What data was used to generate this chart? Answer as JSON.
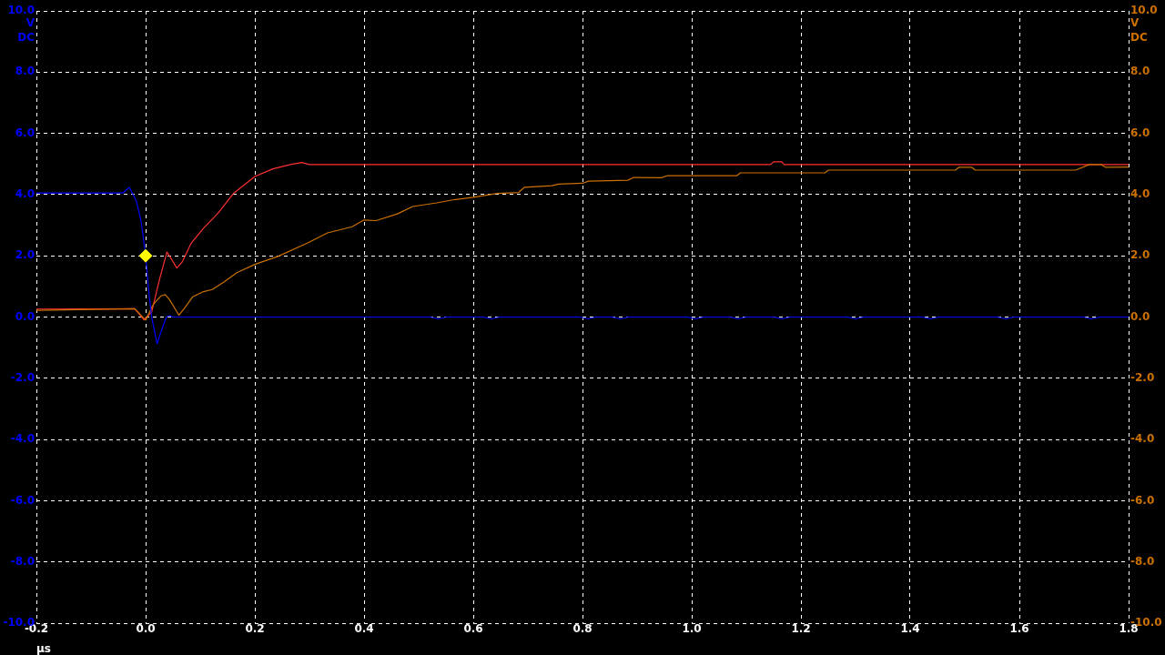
{
  "chart_data": {
    "type": "line",
    "xlabel": "µs",
    "ylabel": "V DC",
    "y2label": "V DC",
    "grid": true,
    "marker": "none",
    "line_style": "solid",
    "xlim": [
      -0.2,
      1.8
    ],
    "xticks": [
      {
        "value": -0.2,
        "label": "-0.2"
      },
      {
        "value": 0,
        "label": "0.0"
      },
      {
        "value": 0.2,
        "label": "0.2"
      },
      {
        "value": 0.4,
        "label": "0.4"
      },
      {
        "value": 0.6,
        "label": "0.6"
      },
      {
        "value": 0.8,
        "label": "0.8"
      },
      {
        "value": 1,
        "label": "1.0"
      },
      {
        "value": 1.2,
        "label": "1.2"
      },
      {
        "value": 1.4,
        "label": "1.4"
      },
      {
        "value": 1.6,
        "label": "1.6"
      },
      {
        "value": 1.8,
        "label": "1.8"
      }
    ],
    "ylim": [
      -10,
      10
    ],
    "yticks": [
      {
        "value": -10,
        "label": "-10.0"
      },
      {
        "value": -8,
        "label": "-8.0"
      },
      {
        "value": -6,
        "label": "-6.0"
      },
      {
        "value": -4,
        "label": "-4.0"
      },
      {
        "value": -2,
        "label": "-2.0"
      },
      {
        "value": 0,
        "label": "0.0"
      },
      {
        "value": 2,
        "label": "2.0"
      },
      {
        "value": 4,
        "label": "4.0"
      },
      {
        "value": 6,
        "label": "6.0"
      },
      {
        "value": 8,
        "label": "8.0"
      },
      {
        "value": 10,
        "label": "10.0"
      }
    ],
    "y2lim": [
      -10,
      10
    ],
    "y2ticks": [
      {
        "value": -10,
        "label": "-10.0"
      },
      {
        "value": -8,
        "label": "-8.0"
      },
      {
        "value": -6,
        "label": "-6.0"
      },
      {
        "value": -4,
        "label": "-4.0"
      },
      {
        "value": -2,
        "label": "-2.0"
      },
      {
        "value": 0,
        "label": "0.0"
      },
      {
        "value": 2,
        "label": "2.0"
      },
      {
        "value": 4,
        "label": "4.0"
      },
      {
        "value": 6,
        "label": "6.0"
      },
      {
        "value": 8,
        "label": "8.0"
      },
      {
        "value": 10,
        "label": "10.0"
      }
    ],
    "series": [
      {
        "color": "#0000ff",
        "axis": "y",
        "x": [
          -0.2,
          -0.042,
          -0.03,
          -0.017,
          -0.008,
          0,
          0.006,
          0.011,
          0.021,
          0.03,
          0.038,
          0.044,
          0.05,
          0.521,
          0.536,
          0.551,
          0.618,
          0.633,
          0.648,
          0.795,
          0.81,
          0.825,
          0.854,
          0.869,
          0.884,
          0.992,
          1.007,
          1.022,
          1.07,
          1.085,
          1.1,
          1.15,
          1.165,
          1.18,
          1.285,
          1.3,
          1.315,
          1.422,
          1.437,
          1.452,
          1.56,
          1.575,
          1.59,
          1.717,
          1.732,
          1.747,
          1.8
        ],
        "values": [
          4.05,
          4.05,
          4.24,
          3.79,
          3.1,
          2.0,
          0.8,
          0,
          -0.87,
          -0.39,
          0,
          0.05,
          0,
          0,
          -0.06,
          0,
          0,
          -0.06,
          0,
          0,
          -0.06,
          0,
          0,
          -0.06,
          0,
          0,
          -0.06,
          0,
          0,
          -0.06,
          0,
          0,
          -0.06,
          0,
          0,
          -0.06,
          0,
          0,
          -0.06,
          0,
          0,
          -0.06,
          0,
          0,
          -0.06,
          0,
          0
        ]
      },
      {
        "color": "#cc7000",
        "axis": "y2",
        "x": [
          -0.2,
          -0.02,
          0,
          0.014,
          0.028,
          0.036,
          0.044,
          0.061,
          0.072,
          0.086,
          0.106,
          0.122,
          0.144,
          0.167,
          0.2,
          0.242,
          0.297,
          0.333,
          0.378,
          0.4,
          0.422,
          0.461,
          0.489,
          0.533,
          0.567,
          0.6,
          0.644,
          0.683,
          0.694,
          0.744,
          0.756,
          0.8,
          0.811,
          0.883,
          0.894,
          0.944,
          0.956,
          1.083,
          1.089,
          1.244,
          1.25,
          1.483,
          1.489,
          1.513,
          1.519,
          1.703,
          1.728,
          1.75,
          1.758,
          1.8
        ],
        "values": [
          0.22,
          0.27,
          -0.1,
          0.41,
          0.69,
          0.73,
          0.56,
          0.06,
          0.31,
          0.66,
          0.83,
          0.9,
          1.15,
          1.45,
          1.72,
          1.98,
          2.42,
          2.75,
          2.95,
          3.17,
          3.15,
          3.37,
          3.61,
          3.73,
          3.84,
          3.91,
          4.04,
          4.07,
          4.24,
          4.29,
          4.34,
          4.37,
          4.44,
          4.47,
          4.56,
          4.55,
          4.62,
          4.62,
          4.71,
          4.71,
          4.8,
          4.8,
          4.89,
          4.89,
          4.8,
          4.8,
          4.98,
          4.98,
          4.89,
          4.9
        ]
      },
      {
        "color": "#ff3030",
        "axis": "y2",
        "x": [
          -0.2,
          -0.02,
          -0.003,
          0.011,
          0.025,
          0.039,
          0.047,
          0.057,
          0.067,
          0.083,
          0.106,
          0.133,
          0.161,
          0.2,
          0.233,
          0.267,
          0.286,
          0.3,
          1.144,
          1.15,
          1.165,
          1.169,
          1.8
        ],
        "values": [
          0.26,
          0.27,
          -0.09,
          0.16,
          1.2,
          2.12,
          1.9,
          1.6,
          1.8,
          2.4,
          2.9,
          3.4,
          4.04,
          4.59,
          4.84,
          4.99,
          5.05,
          4.98,
          4.98,
          5.07,
          5.07,
          4.98,
          4.98
        ]
      },
      {
        "type": "scatter",
        "marker": "diamond",
        "color": "#ffff00",
        "axis": "y",
        "x": [
          0
        ],
        "values": [
          2
        ]
      }
    ]
  }
}
